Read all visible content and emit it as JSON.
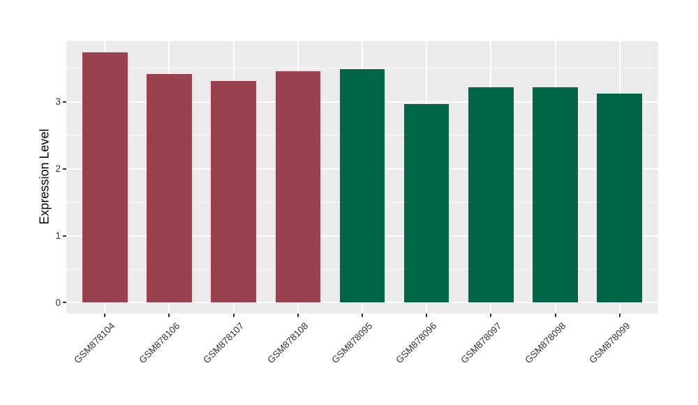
{
  "colors": {
    "page_bg": "#ffffff",
    "panel_bg": "#EBEBEB",
    "grid": "#ffffff",
    "axis_text": "#333333",
    "axis_title": "#000000",
    "group_red": "#9A4150",
    "group_green": "#006647"
  },
  "chart_data": {
    "type": "bar",
    "title": "",
    "xlabel": "",
    "ylabel": "Expression Level",
    "categories": [
      "GSM878104",
      "GSM878106",
      "GSM878107",
      "GSM878108",
      "GSM878095",
      "GSM878096",
      "GSM878097",
      "GSM878098",
      "GSM878099"
    ],
    "values": [
      3.74,
      3.42,
      3.31,
      3.46,
      3.49,
      2.97,
      3.22,
      3.22,
      3.12
    ],
    "bar_colors": [
      "#9A4150",
      "#9A4150",
      "#9A4150",
      "#9A4150",
      "#006647",
      "#006647",
      "#006647",
      "#006647",
      "#006647"
    ],
    "y_ticks": [
      "0",
      "1",
      "2",
      "3"
    ],
    "y_tick_values": [
      0,
      1,
      2,
      3
    ],
    "y_minor_values": [
      0.5,
      1.5,
      2.5,
      3.5
    ],
    "ylim": [
      -0.162,
      3.906
    ],
    "bar_rel_width": 0.7,
    "x_tick_angle": 45,
    "grid": true,
    "legend": "none"
  }
}
